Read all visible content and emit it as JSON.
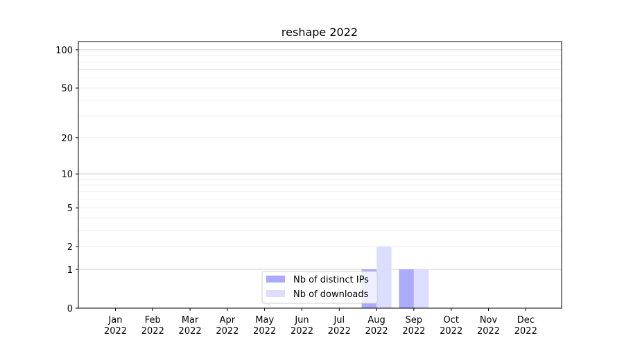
{
  "chart_data": {
    "type": "bar",
    "title": "reshape 2022",
    "xlabel": "",
    "ylabel": "",
    "yscale": "log(1+y)",
    "ylim": [
      0,
      116
    ],
    "yticks": [
      0,
      1,
      2,
      5,
      10,
      20,
      50,
      100
    ],
    "grid": true,
    "legend_placement": "lower-center",
    "categories": [
      "Jan\n2022",
      "Feb\n2022",
      "Mar\n2022",
      "Apr\n2022",
      "May\n2022",
      "Jun\n2022",
      "Jul\n2022",
      "Aug\n2022",
      "Sep\n2022",
      "Oct\n2022",
      "Nov\n2022",
      "Dec\n2022"
    ],
    "series": [
      {
        "name": "Nb of distinct IPs",
        "color": "#aaaaff",
        "values": [
          0,
          0,
          0,
          0,
          0,
          0,
          0,
          1,
          1,
          0,
          0,
          0
        ]
      },
      {
        "name": "Nb of downloads",
        "color": "#ddddff",
        "values": [
          0,
          0,
          0,
          0,
          0,
          0,
          0,
          2,
          1,
          0,
          0,
          0
        ]
      }
    ]
  }
}
